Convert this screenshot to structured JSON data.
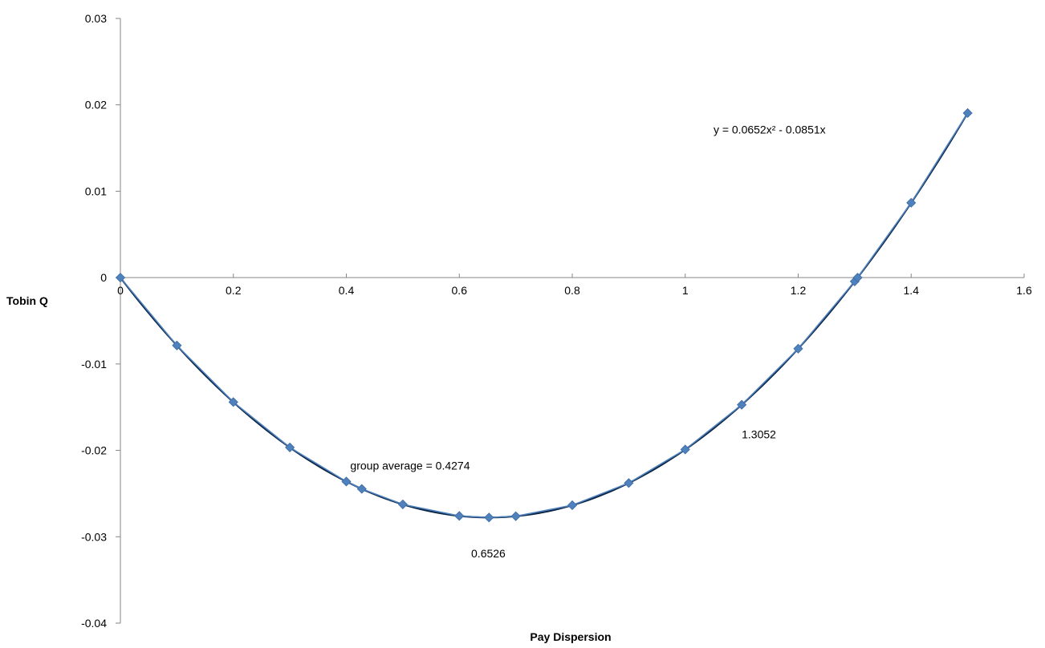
{
  "chart_data": {
    "type": "scatter",
    "xlabel": "Pay Dispersion",
    "ylabel": "Tobin Q",
    "xlim": [
      0,
      1.6
    ],
    "ylim": [
      -0.04,
      0.03
    ],
    "x_ticks": [
      0,
      0.2,
      0.4,
      0.6,
      0.8,
      1,
      1.2,
      1.4,
      1.6
    ],
    "y_ticks": [
      0.03,
      0.02,
      0.01,
      0,
      -0.01,
      -0.02,
      -0.03,
      -0.04
    ],
    "grid": false,
    "legend": "none",
    "series": [
      {
        "marker": "diamond",
        "color": "#4f81bd",
        "x": [
          0,
          0.1,
          0.2,
          0.3,
          0.4,
          0.4274,
          0.5,
          0.6,
          0.6526,
          0.7,
          0.8,
          0.9,
          1.0,
          1.1,
          1.2,
          1.3,
          1.3052,
          1.4,
          1.5
        ],
        "y": [
          0,
          -0.00786,
          -0.01441,
          -0.01966,
          -0.02361,
          -0.02446,
          -0.02625,
          -0.02759,
          -0.02777,
          -0.02762,
          -0.02635,
          -0.02378,
          -0.0199,
          -0.01472,
          -0.00823,
          -0.00044,
          0.0,
          0.00866,
          0.01905
        ]
      }
    ],
    "trendline": {
      "color": "#0b2545",
      "a": 0.0652,
      "b": -0.0851,
      "x_range": [
        0,
        1.5
      ]
    },
    "annotations": [
      {
        "id": "equation",
        "text": "y = 0.0652x² - 0.0851x",
        "x": 1.05,
        "y": 0.0167
      },
      {
        "id": "group-average",
        "text": "group average  = 0.4274",
        "x": 0.407,
        "y": -0.0222
      },
      {
        "id": "vertex",
        "text": "0.6526",
        "x": 0.621,
        "y": -0.0324
      },
      {
        "id": "root",
        "text": "1.3052",
        "x": 1.1,
        "y": -0.0186
      }
    ]
  }
}
